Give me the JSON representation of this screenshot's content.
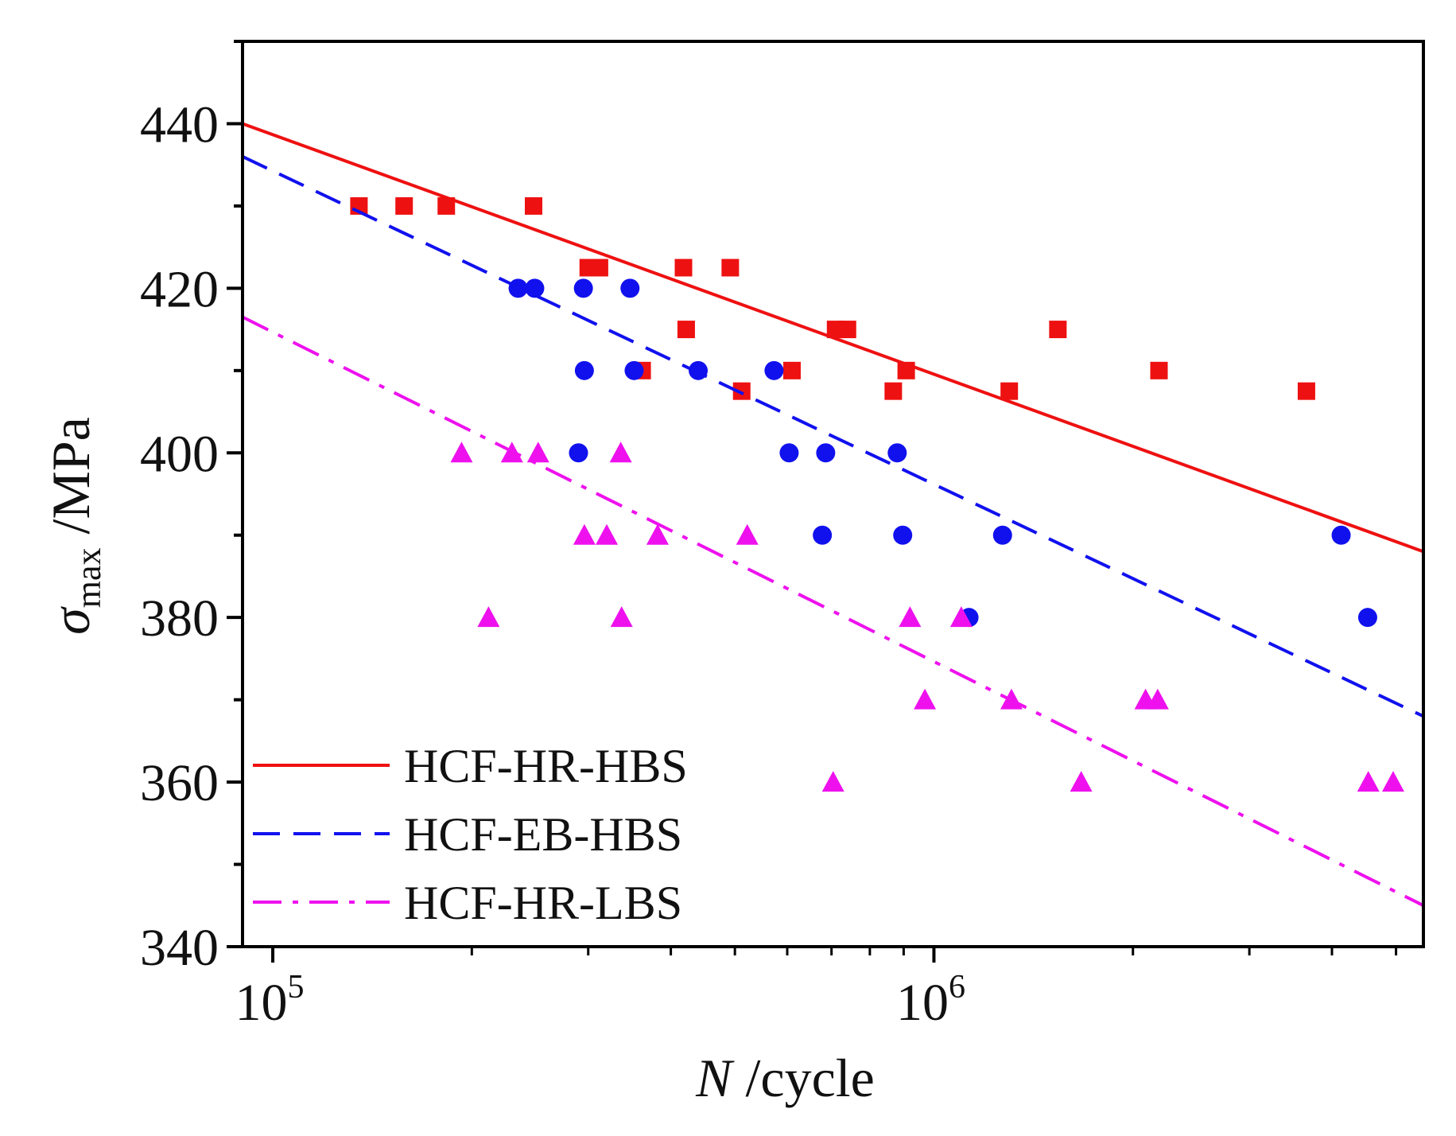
{
  "chart_data": {
    "type": "scatter",
    "title": "",
    "xlabel": {
      "italic": "N",
      "rest": " /cycle"
    },
    "ylabel": {
      "symbol": "σ",
      "subscript": "max",
      "rest": " /MPa"
    },
    "xscale": "log",
    "xlim": [
      90000,
      5500000
    ],
    "ylim": [
      340,
      450
    ],
    "xticks": [
      {
        "value": 100000,
        "base": "10",
        "exp": "5"
      },
      {
        "value": 1000000,
        "base": "10",
        "exp": "6"
      }
    ],
    "yticks": [
      340,
      360,
      380,
      400,
      420,
      440
    ],
    "grid": false,
    "legend_position": "lower-left",
    "series": [
      {
        "name": "HCF-HR-HBS",
        "color": "#ee1111",
        "marker": "square",
        "line_style": "solid",
        "fit": {
          "x": [
            90000,
            5500000
          ],
          "y": [
            440,
            388
          ]
        },
        "points": [
          {
            "x": 135000,
            "y": 430
          },
          {
            "x": 158000,
            "y": 430
          },
          {
            "x": 183000,
            "y": 430
          },
          {
            "x": 248000,
            "y": 430
          },
          {
            "x": 300000,
            "y": 422.5
          },
          {
            "x": 312000,
            "y": 422.5
          },
          {
            "x": 418000,
            "y": 422.5
          },
          {
            "x": 492000,
            "y": 422.5
          },
          {
            "x": 422000,
            "y": 415
          },
          {
            "x": 362000,
            "y": 410
          },
          {
            "x": 512000,
            "y": 407.5
          },
          {
            "x": 610000,
            "y": 410
          },
          {
            "x": 710000,
            "y": 415
          },
          {
            "x": 740000,
            "y": 415
          },
          {
            "x": 868000,
            "y": 407.5
          },
          {
            "x": 908000,
            "y": 410
          },
          {
            "x": 1300000,
            "y": 407.5
          },
          {
            "x": 1540000,
            "y": 415
          },
          {
            "x": 2190000,
            "y": 410
          },
          {
            "x": 3660000,
            "y": 407.5
          }
        ]
      },
      {
        "name": "HCF-EB-HBS",
        "color": "#1111ee",
        "marker": "circle",
        "line_style": "dashed",
        "fit": {
          "x": [
            90000,
            5500000
          ],
          "y": [
            436,
            368
          ]
        },
        "points": [
          {
            "x": 235000,
            "y": 420
          },
          {
            "x": 249000,
            "y": 420
          },
          {
            "x": 295000,
            "y": 420
          },
          {
            "x": 347000,
            "y": 420
          },
          {
            "x": 296000,
            "y": 410
          },
          {
            "x": 352000,
            "y": 410
          },
          {
            "x": 440000,
            "y": 410
          },
          {
            "x": 573000,
            "y": 410
          },
          {
            "x": 290000,
            "y": 400
          },
          {
            "x": 604000,
            "y": 400
          },
          {
            "x": 686000,
            "y": 400
          },
          {
            "x": 880000,
            "y": 400
          },
          {
            "x": 678000,
            "y": 390
          },
          {
            "x": 897000,
            "y": 390
          },
          {
            "x": 1270000,
            "y": 390
          },
          {
            "x": 4130000,
            "y": 390
          },
          {
            "x": 1130000,
            "y": 380
          },
          {
            "x": 4530000,
            "y": 380
          }
        ]
      },
      {
        "name": "HCF-HR-LBS",
        "color": "#ee11ee",
        "marker": "triangle",
        "line_style": "dashdot",
        "fit": {
          "x": [
            90000,
            5500000
          ],
          "y": [
            416.5,
            345
          ]
        },
        "points": [
          {
            "x": 193000,
            "y": 400
          },
          {
            "x": 230000,
            "y": 400
          },
          {
            "x": 252000,
            "y": 400
          },
          {
            "x": 336000,
            "y": 400
          },
          {
            "x": 296000,
            "y": 390
          },
          {
            "x": 320000,
            "y": 390
          },
          {
            "x": 382000,
            "y": 390
          },
          {
            "x": 522000,
            "y": 390
          },
          {
            "x": 212000,
            "y": 380
          },
          {
            "x": 337000,
            "y": 380
          },
          {
            "x": 920000,
            "y": 380
          },
          {
            "x": 1100000,
            "y": 380
          },
          {
            "x": 969000,
            "y": 370
          },
          {
            "x": 1310000,
            "y": 370
          },
          {
            "x": 2090000,
            "y": 370
          },
          {
            "x": 2180000,
            "y": 370
          },
          {
            "x": 704000,
            "y": 360
          },
          {
            "x": 1670000,
            "y": 360
          },
          {
            "x": 4540000,
            "y": 360
          },
          {
            "x": 4950000,
            "y": 360
          }
        ]
      }
    ]
  }
}
